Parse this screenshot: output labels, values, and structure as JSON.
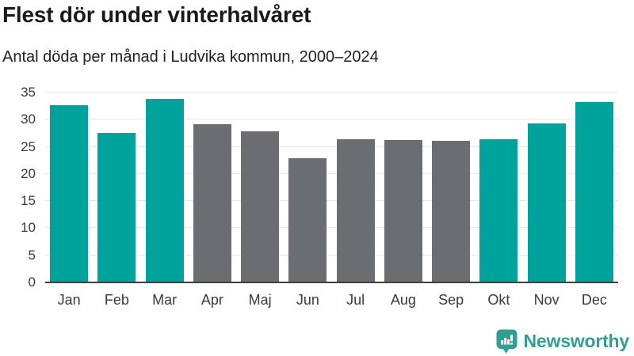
{
  "chart_data": {
    "type": "bar",
    "title": "Flest dör under vinterhalvåret",
    "subtitle": "Antal döda per månad i Ludvika kommun, 2000–2024",
    "categories": [
      "Jan",
      "Feb",
      "Mar",
      "Apr",
      "Maj",
      "Jun",
      "Jul",
      "Aug",
      "Sep",
      "Okt",
      "Nov",
      "Dec"
    ],
    "values": [
      32.6,
      27.5,
      33.9,
      29.1,
      27.8,
      22.9,
      26.4,
      26.3,
      26.1,
      26.4,
      29.3,
      33.3
    ],
    "groups": [
      "winter",
      "winter",
      "winter",
      "summer",
      "summer",
      "summer",
      "summer",
      "summer",
      "summer",
      "winter",
      "winter",
      "winter"
    ],
    "group_colors": {
      "winter": "#00a39b",
      "summer": "#6c6d71"
    },
    "xlabel": "",
    "ylabel": "",
    "ylim": [
      0,
      35
    ],
    "yticks": [
      0,
      5,
      10,
      15,
      20,
      25,
      30,
      35
    ],
    "grid": "horizontal",
    "legend": "none"
  },
  "branding": {
    "name": "Newsworthy",
    "icon": "bar-chart-speech-bubble-icon",
    "color": "#2f9e95"
  },
  "colors": {
    "background": "#ffffff",
    "title": "#1a1a1a",
    "subtitle": "#1f1f1f",
    "tick_label": "#3a3a3e",
    "gridline": "#e7e7e7",
    "axis_line": "#3f3f3f"
  }
}
